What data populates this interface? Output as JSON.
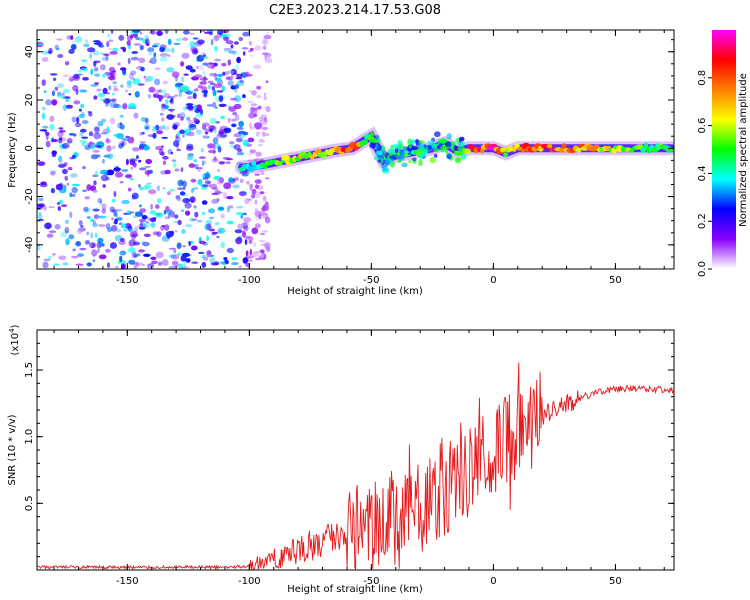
{
  "title": "C2E3.2023.214.17.53.G08",
  "chart_data": [
    {
      "type": "heatmap",
      "xlabel": "Height of straight line (km)",
      "ylabel": "Frequency (Hz)",
      "xlim": [
        -187,
        74
      ],
      "ylim": [
        -50,
        49
      ],
      "xticks": [
        -150,
        -100,
        -50,
        0,
        50
      ],
      "yticks": [
        -40,
        -20,
        0,
        20,
        40
      ],
      "colorbar": {
        "label": "Normalized spectral amplitude",
        "range": [
          0,
          1
        ],
        "ticks": [
          "0.0",
          "0.2",
          "0.4",
          "0.6",
          "0.8"
        ],
        "colors": [
          "#ffffff",
          "#8a00ff",
          "#0000ff",
          "#00ffff",
          "#00ff00",
          "#ffff00",
          "#ff8000",
          "#ff0000",
          "#ff00ff"
        ]
      },
      "noise_region": {
        "x": [
          -187,
          -92
        ],
        "amplitude": 0.1
      },
      "ridge": {
        "x": [
          -103,
          -95,
          -85,
          -75,
          -65,
          -58,
          -50,
          -45,
          -40,
          -35,
          -30,
          -25,
          -20,
          -15,
          -10,
          0,
          5,
          10,
          15,
          25,
          50,
          73
        ],
        "y": [
          -8,
          -7,
          -5,
          -3,
          -1,
          0,
          5,
          -5,
          -3,
          -2,
          -1,
          0,
          2,
          -1,
          0,
          0,
          -2,
          0,
          0,
          0,
          0,
          0
        ],
        "amplitude": [
          0.4,
          0.45,
          0.6,
          0.7,
          0.75,
          0.85,
          0.5,
          0.4,
          0.5,
          0.5,
          0.45,
          0.4,
          0.5,
          0.5,
          0.8,
          0.95,
          0.7,
          0.8,
          0.85,
          0.9,
          0.6,
          0.5
        ]
      }
    },
    {
      "type": "line",
      "xlabel": "Height of straight line (km)",
      "ylabel": "SNR (10 * v/v)",
      "ymultiplier": "(x10",
      "ymultiplier_exp": "4",
      "ymultiplier_close": ")",
      "xlim": [
        -187,
        74
      ],
      "ylim": [
        0,
        1.8
      ],
      "xticks": [
        -150,
        -100,
        -50,
        0,
        50
      ],
      "yticks": [
        "0.5",
        "1.0",
        "1.5"
      ],
      "series": [
        {
          "color": "#e41a1c",
          "x": [
            -187,
            -110,
            -100,
            -90,
            -80,
            -70,
            -60,
            -50,
            -40,
            -30,
            -20,
            -10,
            -5,
            0,
            10,
            20,
            30,
            40,
            50,
            60,
            74
          ],
          "y": [
            0.02,
            0.02,
            0.03,
            0.08,
            0.15,
            0.2,
            0.3,
            0.35,
            0.35,
            0.45,
            0.6,
            0.75,
            0.85,
            0.9,
            1.05,
            1.15,
            1.25,
            1.32,
            1.36,
            1.36,
            1.35
          ]
        }
      ]
    }
  ]
}
